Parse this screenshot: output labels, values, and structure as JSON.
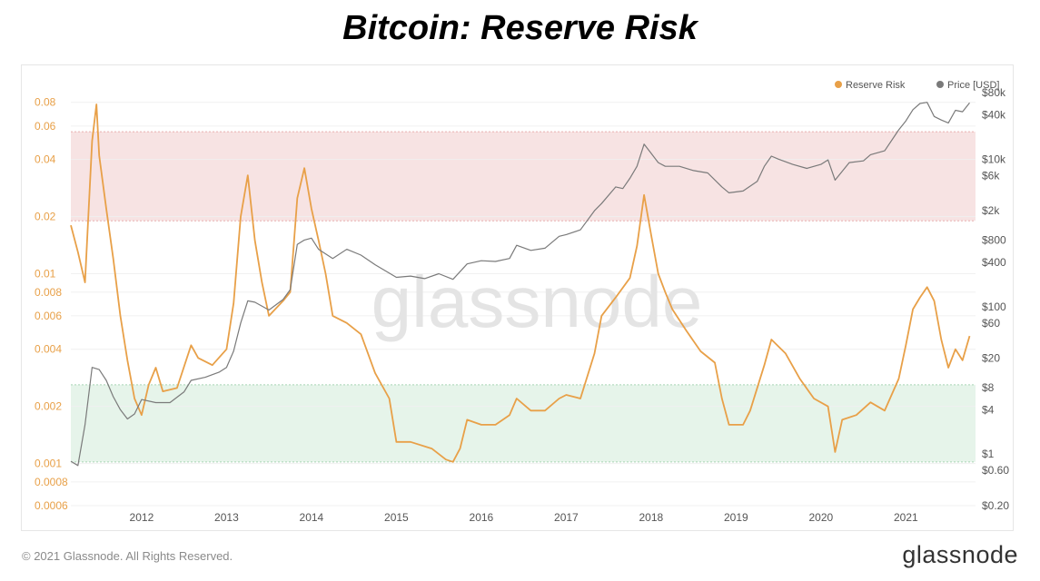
{
  "page": {
    "title": "Bitcoin: Reserve Risk",
    "footer_copyright": "© 2021 Glassnode. All Rights Reserved.",
    "footer_logo": "glassnode",
    "watermark": "glassnode"
  },
  "chart_data": {
    "type": "line",
    "title": "Bitcoin: Reserve Risk",
    "legend": {
      "placement": "top-right",
      "items": [
        {
          "label": "Reserve Risk",
          "color": "#e8a048"
        },
        {
          "label": "Price [USD]",
          "color": "#7a7a7a"
        }
      ]
    },
    "x_axis": {
      "ticks": [
        "2012",
        "2013",
        "2014",
        "2015",
        "2016",
        "2017",
        "2018",
        "2019",
        "2020",
        "2021"
      ],
      "range": [
        "2011-03",
        "2021-10"
      ]
    },
    "y_left": {
      "scale": "log",
      "ticks": [
        "0.08",
        "0.06",
        "0.04",
        "0.02",
        "0.01",
        "0.008",
        "0.006",
        "0.004",
        "0.002",
        "0.001",
        "0.0008",
        "0.0006"
      ],
      "range": [
        0.0006,
        0.09
      ]
    },
    "y_right": {
      "scale": "log",
      "ticks": [
        "$80k",
        "$40k",
        "$10k",
        "$6k",
        "$2k",
        "$800",
        "$400",
        "$100",
        "$60",
        "$20",
        "$8",
        "$4",
        "$1",
        "$0.60",
        "$0.20"
      ],
      "range": [
        0.2,
        80000
      ]
    },
    "bands": [
      {
        "name": "high-risk",
        "from": 0.019,
        "to": 0.056,
        "color": "#f7e3e3"
      },
      {
        "name": "low-risk",
        "from": 0.00102,
        "to": 0.0026,
        "color": "#e6f4ea"
      }
    ],
    "series": [
      {
        "name": "Reserve Risk",
        "color": "#e8a048",
        "axis": "left",
        "points": [
          [
            "2011-03",
            0.018
          ],
          [
            "2011-04",
            0.013
          ],
          [
            "2011-05",
            0.009
          ],
          [
            "2011-06",
            0.05
          ],
          [
            "2011-06-20",
            0.078
          ],
          [
            "2011-07",
            0.042
          ],
          [
            "2011-08",
            0.022
          ],
          [
            "2011-09",
            0.012
          ],
          [
            "2011-10",
            0.006
          ],
          [
            "2011-11",
            0.0035
          ],
          [
            "2011-12",
            0.0022
          ],
          [
            "2012-01",
            0.0018
          ],
          [
            "2012-02",
            0.0026
          ],
          [
            "2012-03",
            0.0032
          ],
          [
            "2012-04",
            0.0024
          ],
          [
            "2012-06",
            0.0025
          ],
          [
            "2012-08",
            0.0042
          ],
          [
            "2012-09",
            0.0036
          ],
          [
            "2012-11",
            0.0033
          ],
          [
            "2013-01",
            0.004
          ],
          [
            "2013-02",
            0.007
          ],
          [
            "2013-03",
            0.02
          ],
          [
            "2013-04",
            0.033
          ],
          [
            "2013-05",
            0.015
          ],
          [
            "2013-06",
            0.009
          ],
          [
            "2013-07",
            0.006
          ],
          [
            "2013-09",
            0.0072
          ],
          [
            "2013-10",
            0.008
          ],
          [
            "2013-11",
            0.025
          ],
          [
            "2013-12",
            0.036
          ],
          [
            "2014-01",
            0.022
          ],
          [
            "2014-02",
            0.015
          ],
          [
            "2014-03",
            0.01
          ],
          [
            "2014-04",
            0.006
          ],
          [
            "2014-06",
            0.0055
          ],
          [
            "2014-08",
            0.0048
          ],
          [
            "2014-10",
            0.003
          ],
          [
            "2014-12",
            0.0022
          ],
          [
            "2015-01",
            0.0013
          ],
          [
            "2015-03",
            0.0013
          ],
          [
            "2015-06",
            0.0012
          ],
          [
            "2015-08",
            0.00105
          ],
          [
            "2015-09",
            0.00102
          ],
          [
            "2015-10",
            0.0012
          ],
          [
            "2015-11",
            0.0017
          ],
          [
            "2016-01",
            0.0016
          ],
          [
            "2016-03",
            0.0016
          ],
          [
            "2016-05",
            0.0018
          ],
          [
            "2016-06",
            0.0022
          ],
          [
            "2016-08",
            0.0019
          ],
          [
            "2016-10",
            0.0019
          ],
          [
            "2016-12",
            0.0022
          ],
          [
            "2017-01",
            0.0023
          ],
          [
            "2017-03",
            0.0022
          ],
          [
            "2017-05",
            0.0038
          ],
          [
            "2017-06",
            0.006
          ],
          [
            "2017-08",
            0.0075
          ],
          [
            "2017-10",
            0.0095
          ],
          [
            "2017-11",
            0.014
          ],
          [
            "2017-12",
            0.026
          ],
          [
            "2018-01",
            0.016
          ],
          [
            "2018-02",
            0.01
          ],
          [
            "2018-03",
            0.008
          ],
          [
            "2018-04",
            0.0065
          ],
          [
            "2018-06",
            0.005
          ],
          [
            "2018-08",
            0.0039
          ],
          [
            "2018-10",
            0.0034
          ],
          [
            "2018-11",
            0.0022
          ],
          [
            "2018-12",
            0.0016
          ],
          [
            "2019-02",
            0.0016
          ],
          [
            "2019-03",
            0.0019
          ],
          [
            "2019-05",
            0.0033
          ],
          [
            "2019-06",
            0.0045
          ],
          [
            "2019-08",
            0.0038
          ],
          [
            "2019-10",
            0.0028
          ],
          [
            "2019-12",
            0.0022
          ],
          [
            "2020-02",
            0.002
          ],
          [
            "2020-03",
            0.00115
          ],
          [
            "2020-04",
            0.0017
          ],
          [
            "2020-06",
            0.0018
          ],
          [
            "2020-08",
            0.0021
          ],
          [
            "2020-10",
            0.0019
          ],
          [
            "2020-12",
            0.0028
          ],
          [
            "2021-01",
            0.0042
          ],
          [
            "2021-02",
            0.0065
          ],
          [
            "2021-03",
            0.0075
          ],
          [
            "2021-04",
            0.0085
          ],
          [
            "2021-05",
            0.0072
          ],
          [
            "2021-06",
            0.0045
          ],
          [
            "2021-07",
            0.0032
          ],
          [
            "2021-08",
            0.004
          ],
          [
            "2021-09",
            0.0035
          ],
          [
            "2021-10",
            0.0047
          ]
        ]
      },
      {
        "name": "Price [USD]",
        "color": "#7a7a7a",
        "axis": "right",
        "points": [
          [
            "2011-03",
            0.8
          ],
          [
            "2011-04",
            0.7
          ],
          [
            "2011-05",
            2.5
          ],
          [
            "2011-06",
            15
          ],
          [
            "2011-07",
            14
          ],
          [
            "2011-08",
            10
          ],
          [
            "2011-09",
            6
          ],
          [
            "2011-10",
            4
          ],
          [
            "2011-11",
            3
          ],
          [
            "2011-12",
            3.5
          ],
          [
            "2012-01",
            5.5
          ],
          [
            "2012-03",
            5
          ],
          [
            "2012-05",
            5
          ],
          [
            "2012-07",
            7
          ],
          [
            "2012-08",
            10
          ],
          [
            "2012-10",
            11
          ],
          [
            "2012-12",
            13
          ],
          [
            "2013-01",
            15
          ],
          [
            "2013-02",
            25
          ],
          [
            "2013-03",
            60
          ],
          [
            "2013-04",
            120
          ],
          [
            "2013-05",
            115
          ],
          [
            "2013-07",
            90
          ],
          [
            "2013-09",
            125
          ],
          [
            "2013-10",
            170
          ],
          [
            "2013-11",
            700
          ],
          [
            "2013-12",
            800
          ],
          [
            "2014-01",
            850
          ],
          [
            "2014-02",
            600
          ],
          [
            "2014-04",
            450
          ],
          [
            "2014-06",
            600
          ],
          [
            "2014-08",
            500
          ],
          [
            "2014-10",
            370
          ],
          [
            "2015-01",
            250
          ],
          [
            "2015-03",
            260
          ],
          [
            "2015-05",
            240
          ],
          [
            "2015-07",
            280
          ],
          [
            "2015-09",
            235
          ],
          [
            "2015-11",
            380
          ],
          [
            "2016-01",
            420
          ],
          [
            "2016-03",
            410
          ],
          [
            "2016-05",
            450
          ],
          [
            "2016-06",
            680
          ],
          [
            "2016-08",
            580
          ],
          [
            "2016-10",
            620
          ],
          [
            "2016-12",
            900
          ],
          [
            "2017-01",
            950
          ],
          [
            "2017-03",
            1100
          ],
          [
            "2017-05",
            2000
          ],
          [
            "2017-06",
            2500
          ],
          [
            "2017-08",
            4200
          ],
          [
            "2017-09",
            4000
          ],
          [
            "2017-10",
            5500
          ],
          [
            "2017-11",
            8000
          ],
          [
            "2017-12",
            16000
          ],
          [
            "2018-01",
            12000
          ],
          [
            "2018-02",
            9000
          ],
          [
            "2018-03",
            8000
          ],
          [
            "2018-05",
            8000
          ],
          [
            "2018-07",
            7000
          ],
          [
            "2018-09",
            6500
          ],
          [
            "2018-11",
            4200
          ],
          [
            "2018-12",
            3500
          ],
          [
            "2019-02",
            3700
          ],
          [
            "2019-04",
            5000
          ],
          [
            "2019-05",
            8000
          ],
          [
            "2019-06",
            11000
          ],
          [
            "2019-07",
            10000
          ],
          [
            "2019-09",
            8500
          ],
          [
            "2019-11",
            7500
          ],
          [
            "2020-01",
            8500
          ],
          [
            "2020-02",
            9800
          ],
          [
            "2020-03",
            5200
          ],
          [
            "2020-05",
            9000
          ],
          [
            "2020-07",
            9500
          ],
          [
            "2020-08",
            11500
          ],
          [
            "2020-10",
            13000
          ],
          [
            "2020-12",
            25000
          ],
          [
            "2021-01",
            33000
          ],
          [
            "2021-02",
            47000
          ],
          [
            "2021-03",
            57000
          ],
          [
            "2021-04",
            59000
          ],
          [
            "2021-05",
            38000
          ],
          [
            "2021-06",
            34000
          ],
          [
            "2021-07",
            31000
          ],
          [
            "2021-08",
            46000
          ],
          [
            "2021-09",
            44000
          ],
          [
            "2021-10",
            58000
          ]
        ]
      }
    ]
  }
}
